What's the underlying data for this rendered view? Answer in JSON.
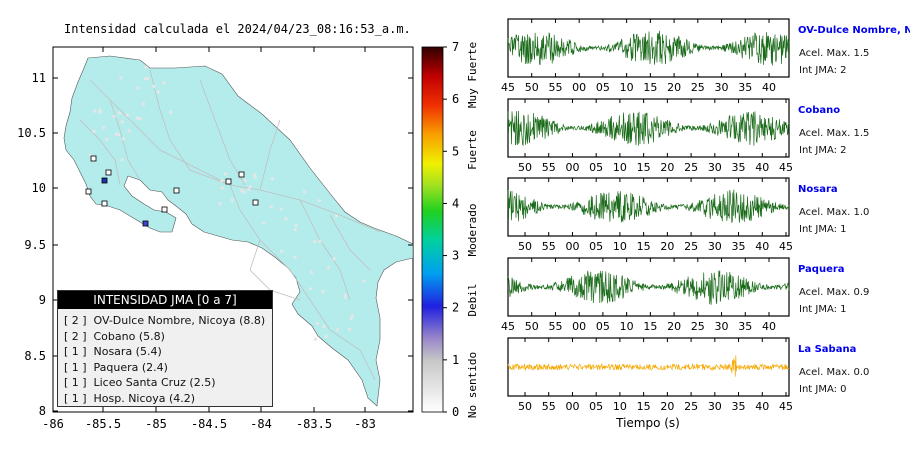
{
  "title": "Intensidad calculada el 2024/04/23_08:16:53_a.m.",
  "map": {
    "y_ticks": [
      "11",
      "10.5",
      "10",
      "9.5",
      "9",
      "8.5",
      "8"
    ],
    "x_ticks": [
      "-86",
      "-85.5",
      "-85",
      "-84.5",
      "-84",
      "-83.5",
      "-83"
    ],
    "land_color": "#b4ecec"
  },
  "colorbar": {
    "ticks": [
      "0",
      "1",
      "2",
      "3",
      "4",
      "5",
      "6",
      "7"
    ],
    "labels": [
      "No sentido",
      "Debil",
      "Moderado",
      "Fuerte",
      "Muy Fuerte"
    ]
  },
  "legend": {
    "header": "INTENSIDAD JMA [0 a 7]",
    "items": [
      {
        "level": "[ 2 ]",
        "name": "OV-Dulce Nombre, Nicoya (8.8)"
      },
      {
        "level": "[ 2 ]",
        "name": "Cobano (5.8)"
      },
      {
        "level": "[ 1 ]",
        "name": "Nosara (5.4)"
      },
      {
        "level": "[ 1 ]",
        "name": "Paquera (2.4)"
      },
      {
        "level": "[ 1 ]",
        "name": "Liceo Santa Cruz (2.5)"
      },
      {
        "level": "[ 1 ]",
        "name": "Hosp. Nicoya (4.2)"
      }
    ]
  },
  "traces": [
    {
      "name": "OV-Dulce Nombre, Nicoya",
      "acel": "Acel. Max. 1.5",
      "int": "Int JMA: 2",
      "color": "#1a6b1a",
      "xticks": [
        "45",
        "50",
        "55",
        "00",
        "05",
        "10",
        "15",
        "20",
        "25",
        "30",
        "35",
        "40"
      ],
      "xticks_pos": "bottom"
    },
    {
      "name": "Cobano",
      "acel": "Acel. Max. 1.5",
      "int": "Int JMA: 2",
      "color": "#1a6b1a",
      "xticks": [
        "50",
        "55",
        "00",
        "05",
        "10",
        "15",
        "20",
        "25",
        "30",
        "35",
        "40",
        "45"
      ],
      "xticks_pos": "bottom"
    },
    {
      "name": "Nosara",
      "acel": "Acel. Max. 1.0",
      "int": "Int JMA: 1",
      "color": "#1a6b1a",
      "xticks": [
        "50",
        "55",
        "00",
        "05",
        "10",
        "15",
        "20",
        "25",
        "30",
        "35",
        "40",
        "45"
      ],
      "xticks_pos": "bottom"
    },
    {
      "name": "Paquera",
      "acel": "Acel. Max. 0.9",
      "int": "Int JMA: 1",
      "color": "#1a6b1a",
      "xticks": [
        "45",
        "50",
        "55",
        "00",
        "05",
        "10",
        "15",
        "20",
        "25",
        "30",
        "35",
        "40"
      ],
      "xticks_pos": "bottom"
    },
    {
      "name": "La Sabana",
      "acel": "Acel. Max. 0.0",
      "int": "Int JMA: 0",
      "color": "#f5a800",
      "xticks": [
        "50",
        "55",
        "00",
        "05",
        "10",
        "15",
        "20",
        "25",
        "30",
        "35",
        "40",
        "45"
      ],
      "xticks_pos": "bottom"
    }
  ],
  "traces_xlabel": "Tiempo (s)"
}
